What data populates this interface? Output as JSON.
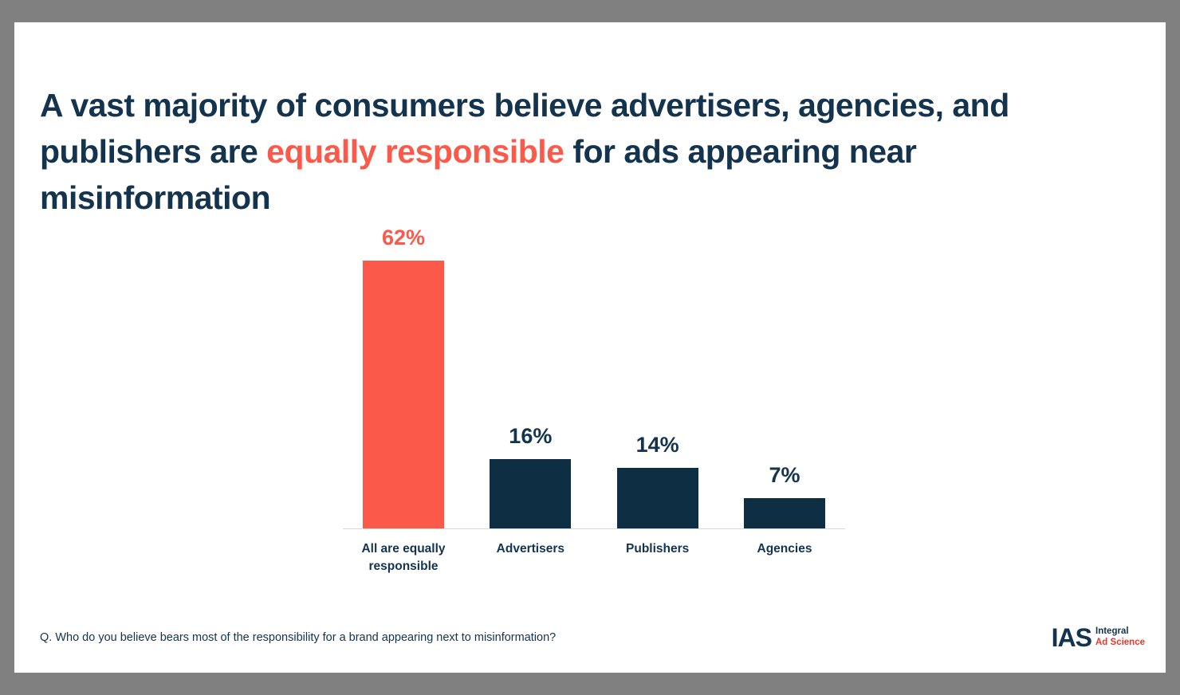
{
  "title": {
    "part1": "A vast majority of consumers believe advertisers, agencies, and publishers are ",
    "highlight": "equally responsible",
    "part2": " for ads appearing near misinformation"
  },
  "chart_data": {
    "type": "bar",
    "title": "A vast majority of consumers believe advertisers, agencies, and publishers are equally responsible for ads appearing near misinformation",
    "categories": [
      "All are equally responsible",
      "Advertisers",
      "Publishers",
      "Agencies"
    ],
    "values": [
      62,
      16,
      14,
      7
    ],
    "value_labels": [
      "62%",
      "16%",
      "14%",
      "7%"
    ],
    "bar_colors": [
      "#fb5a4a",
      "#0e2e44",
      "#0e2e44",
      "#0e2e44"
    ],
    "label_colors": [
      "#fb5a4a",
      "#14344e",
      "#14344e",
      "#14344e"
    ],
    "xlabel": "",
    "ylabel": "",
    "ylim": [
      0,
      70
    ],
    "grid": false,
    "legend": false
  },
  "footer": {
    "question": "Q. Who do you believe bears most of the responsibility for a brand appearing next to misinformation?"
  },
  "logo": {
    "abbr": "IAS",
    "line1": "Integral",
    "line2": "Ad Science"
  },
  "colors": {
    "accent_coral": "#fb5a4a",
    "navy": "#14344e",
    "bar_navy": "#0e2e44",
    "frame_gray": "#808080",
    "baseline_gray": "#d8d8d8"
  }
}
